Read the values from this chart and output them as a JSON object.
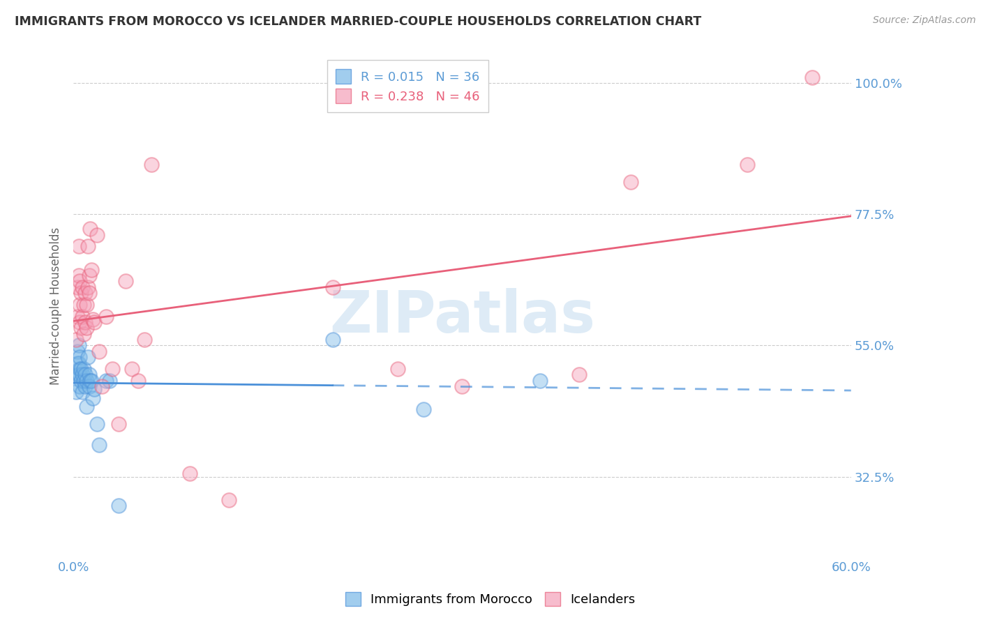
{
  "title": "IMMIGRANTS FROM MOROCCO VS ICELANDER MARRIED-COUPLE HOUSEHOLDS CORRELATION CHART",
  "source": "Source: ZipAtlas.com",
  "ylabel": "Married-couple Households",
  "xlim": [
    0.0,
    0.6
  ],
  "ylim": [
    0.185,
    1.05
  ],
  "yticks": [
    0.325,
    0.55,
    0.775,
    1.0
  ],
  "ytick_labels": [
    "32.5%",
    "55.0%",
    "77.5%",
    "100.0%"
  ],
  "xticks": [
    0.0,
    0.1,
    0.2,
    0.3,
    0.4,
    0.5,
    0.6
  ],
  "xtick_labels": [
    "0.0%",
    "",
    "",
    "",
    "",
    "",
    "60.0%"
  ],
  "legend_R1": "R = 0.015",
  "legend_N1": "N = 36",
  "legend_R2": "R = 0.238",
  "legend_N2": "N = 46",
  "color_blue": "#7ab8e8",
  "color_pink": "#f5a0b8",
  "color_line_blue": "#4a90d9",
  "color_line_pink": "#e8607a",
  "color_axis_labels": "#5b9bd5",
  "color_title": "#333333",
  "blue_x": [
    0.002,
    0.003,
    0.003,
    0.003,
    0.004,
    0.004,
    0.004,
    0.005,
    0.005,
    0.005,
    0.005,
    0.006,
    0.006,
    0.007,
    0.007,
    0.008,
    0.008,
    0.009,
    0.009,
    0.01,
    0.01,
    0.011,
    0.012,
    0.012,
    0.013,
    0.014,
    0.015,
    0.016,
    0.018,
    0.02,
    0.025,
    0.028,
    0.035,
    0.2,
    0.27,
    0.36
  ],
  "blue_y": [
    0.47,
    0.5,
    0.52,
    0.54,
    0.5,
    0.52,
    0.55,
    0.5,
    0.51,
    0.53,
    0.48,
    0.49,
    0.51,
    0.5,
    0.47,
    0.49,
    0.51,
    0.5,
    0.48,
    0.49,
    0.445,
    0.53,
    0.5,
    0.48,
    0.49,
    0.49,
    0.46,
    0.475,
    0.415,
    0.38,
    0.49,
    0.49,
    0.275,
    0.56,
    0.44,
    0.49
  ],
  "pink_x": [
    0.002,
    0.003,
    0.003,
    0.004,
    0.004,
    0.005,
    0.005,
    0.005,
    0.006,
    0.006,
    0.007,
    0.007,
    0.008,
    0.008,
    0.009,
    0.009,
    0.01,
    0.01,
    0.011,
    0.011,
    0.012,
    0.012,
    0.013,
    0.014,
    0.015,
    0.016,
    0.018,
    0.02,
    0.022,
    0.025,
    0.03,
    0.035,
    0.04,
    0.045,
    0.05,
    0.055,
    0.06,
    0.09,
    0.12,
    0.2,
    0.25,
    0.3,
    0.39,
    0.43,
    0.52,
    0.57
  ],
  "pink_y": [
    0.56,
    0.6,
    0.65,
    0.67,
    0.72,
    0.59,
    0.62,
    0.66,
    0.58,
    0.64,
    0.6,
    0.65,
    0.57,
    0.62,
    0.59,
    0.64,
    0.58,
    0.62,
    0.65,
    0.72,
    0.64,
    0.67,
    0.75,
    0.68,
    0.595,
    0.59,
    0.74,
    0.54,
    0.48,
    0.6,
    0.51,
    0.415,
    0.66,
    0.51,
    0.49,
    0.56,
    0.86,
    0.33,
    0.285,
    0.65,
    0.51,
    0.48,
    0.5,
    0.83,
    0.86,
    1.01
  ],
  "blue_line_solid_end": 0.2,
  "watermark_text": "ZIPatlas",
  "watermark_color": "#c8dff0",
  "background_color": "#ffffff",
  "grid_color": "#cccccc"
}
